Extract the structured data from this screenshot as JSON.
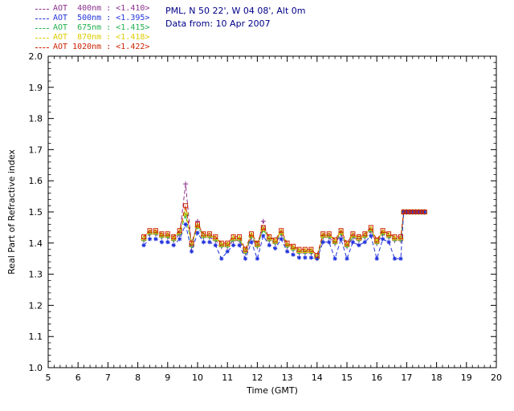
{
  "header": {
    "location_line": "PML, N 50 22', W 04 08', Alt 0m",
    "date_line": "Data from: 10 Apr 2007",
    "text_color": "#000088"
  },
  "legend": {
    "position": "top-left",
    "items": [
      {
        "label": "AOT  400nm : <1.410>",
        "color": "#8b2f8b",
        "marker": "plus"
      },
      {
        "label": "AOT  500nm : <1.395>",
        "color": "#2233dd",
        "marker": "asterisk"
      },
      {
        "label": "AOT  675nm : <1.415>",
        "color": "#22b14c",
        "marker": "diamond"
      },
      {
        "label": "AOT  870nm : <1.418>",
        "color": "#ddcc00",
        "marker": "triangle"
      },
      {
        "label": "AOT 1020nm : <1.422>",
        "color": "#cc2200",
        "marker": "square"
      }
    ]
  },
  "chart_data": {
    "type": "line",
    "title": "",
    "xlabel": "Time (GMT)",
    "ylabel": "Real Part of Refractive index",
    "xlim": [
      5,
      20
    ],
    "ylim": [
      1.0,
      2.0
    ],
    "x_ticks": [
      5,
      6,
      7,
      8,
      9,
      10,
      11,
      12,
      13,
      14,
      15,
      16,
      17,
      18,
      19,
      20
    ],
    "y_ticks": [
      1.0,
      1.1,
      1.2,
      1.3,
      1.4,
      1.5,
      1.6,
      1.7,
      1.8,
      1.9,
      2.0
    ],
    "grid": false,
    "line_style": "dashed",
    "legend_position": "top-left",
    "x": [
      8.2,
      8.4,
      8.6,
      8.8,
      9.0,
      9.2,
      9.4,
      9.6,
      9.8,
      10.0,
      10.2,
      10.4,
      10.6,
      10.8,
      11.0,
      11.2,
      11.4,
      11.6,
      11.8,
      12.0,
      12.2,
      12.4,
      12.6,
      12.8,
      13.0,
      13.2,
      13.4,
      13.6,
      13.8,
      14.0,
      14.2,
      14.4,
      14.6,
      14.8,
      15.0,
      15.2,
      15.4,
      15.6,
      15.8,
      16.0,
      16.2,
      16.4,
      16.6,
      16.8,
      16.9,
      17.0,
      17.1,
      17.2,
      17.3,
      17.4,
      17.5,
      17.6
    ],
    "series": [
      {
        "name": "AOT 400nm",
        "mean": 1.41,
        "color": "#8b2f8b",
        "marker": "plus",
        "values": [
          1.408,
          1.428,
          1.428,
          1.418,
          1.418,
          1.408,
          1.428,
          1.59,
          1.388,
          1.47,
          1.418,
          1.418,
          1.408,
          1.388,
          1.388,
          1.408,
          1.408,
          1.368,
          1.418,
          1.388,
          1.47,
          1.408,
          1.398,
          1.428,
          1.388,
          1.378,
          1.368,
          1.368,
          1.368,
          1.35,
          1.418,
          1.418,
          1.398,
          1.428,
          1.388,
          1.418,
          1.408,
          1.418,
          1.438,
          1.398,
          1.428,
          1.418,
          1.408,
          1.408,
          1.5,
          1.5,
          1.5,
          1.5,
          1.5,
          1.5,
          1.5,
          1.5
        ]
      },
      {
        "name": "AOT 500nm",
        "mean": 1.395,
        "color": "#2233dd",
        "marker": "asterisk",
        "values": [
          1.393,
          1.413,
          1.413,
          1.403,
          1.403,
          1.393,
          1.413,
          1.46,
          1.373,
          1.433,
          1.403,
          1.403,
          1.393,
          1.35,
          1.373,
          1.393,
          1.393,
          1.35,
          1.403,
          1.35,
          1.423,
          1.393,
          1.383,
          1.413,
          1.373,
          1.363,
          1.353,
          1.353,
          1.353,
          1.35,
          1.403,
          1.403,
          1.35,
          1.413,
          1.35,
          1.403,
          1.393,
          1.403,
          1.423,
          1.35,
          1.413,
          1.403,
          1.35,
          1.35,
          1.5,
          1.5,
          1.5,
          1.5,
          1.5,
          1.5,
          1.5,
          1.5
        ]
      },
      {
        "name": "AOT 675nm",
        "mean": 1.415,
        "color": "#22b14c",
        "marker": "diamond",
        "values": [
          1.413,
          1.433,
          1.433,
          1.423,
          1.423,
          1.413,
          1.433,
          1.49,
          1.393,
          1.453,
          1.423,
          1.423,
          1.413,
          1.393,
          1.393,
          1.413,
          1.413,
          1.373,
          1.423,
          1.393,
          1.443,
          1.413,
          1.403,
          1.433,
          1.393,
          1.383,
          1.373,
          1.373,
          1.373,
          1.353,
          1.423,
          1.423,
          1.403,
          1.433,
          1.393,
          1.423,
          1.413,
          1.423,
          1.443,
          1.403,
          1.433,
          1.423,
          1.413,
          1.413,
          1.5,
          1.5,
          1.5,
          1.5,
          1.5,
          1.5,
          1.5,
          1.5
        ]
      },
      {
        "name": "AOT 870nm",
        "mean": 1.418,
        "color": "#ddcc00",
        "marker": "triangle",
        "values": [
          1.416,
          1.436,
          1.436,
          1.426,
          1.426,
          1.416,
          1.436,
          1.5,
          1.396,
          1.456,
          1.426,
          1.426,
          1.416,
          1.396,
          1.396,
          1.416,
          1.416,
          1.376,
          1.426,
          1.396,
          1.446,
          1.416,
          1.406,
          1.436,
          1.396,
          1.386,
          1.376,
          1.376,
          1.376,
          1.356,
          1.426,
          1.426,
          1.406,
          1.436,
          1.396,
          1.426,
          1.416,
          1.426,
          1.446,
          1.406,
          1.436,
          1.426,
          1.416,
          1.416,
          1.5,
          1.5,
          1.5,
          1.5,
          1.5,
          1.5,
          1.5,
          1.5
        ]
      },
      {
        "name": "AOT 1020nm",
        "mean": 1.422,
        "color": "#cc2200",
        "marker": "square",
        "values": [
          1.42,
          1.44,
          1.44,
          1.43,
          1.43,
          1.42,
          1.44,
          1.52,
          1.4,
          1.46,
          1.43,
          1.43,
          1.42,
          1.4,
          1.4,
          1.42,
          1.42,
          1.38,
          1.43,
          1.4,
          1.45,
          1.42,
          1.41,
          1.44,
          1.4,
          1.39,
          1.38,
          1.38,
          1.38,
          1.36,
          1.43,
          1.43,
          1.41,
          1.44,
          1.4,
          1.43,
          1.42,
          1.43,
          1.45,
          1.41,
          1.44,
          1.43,
          1.42,
          1.42,
          1.5,
          1.5,
          1.5,
          1.5,
          1.5,
          1.5,
          1.5,
          1.5
        ]
      }
    ]
  }
}
